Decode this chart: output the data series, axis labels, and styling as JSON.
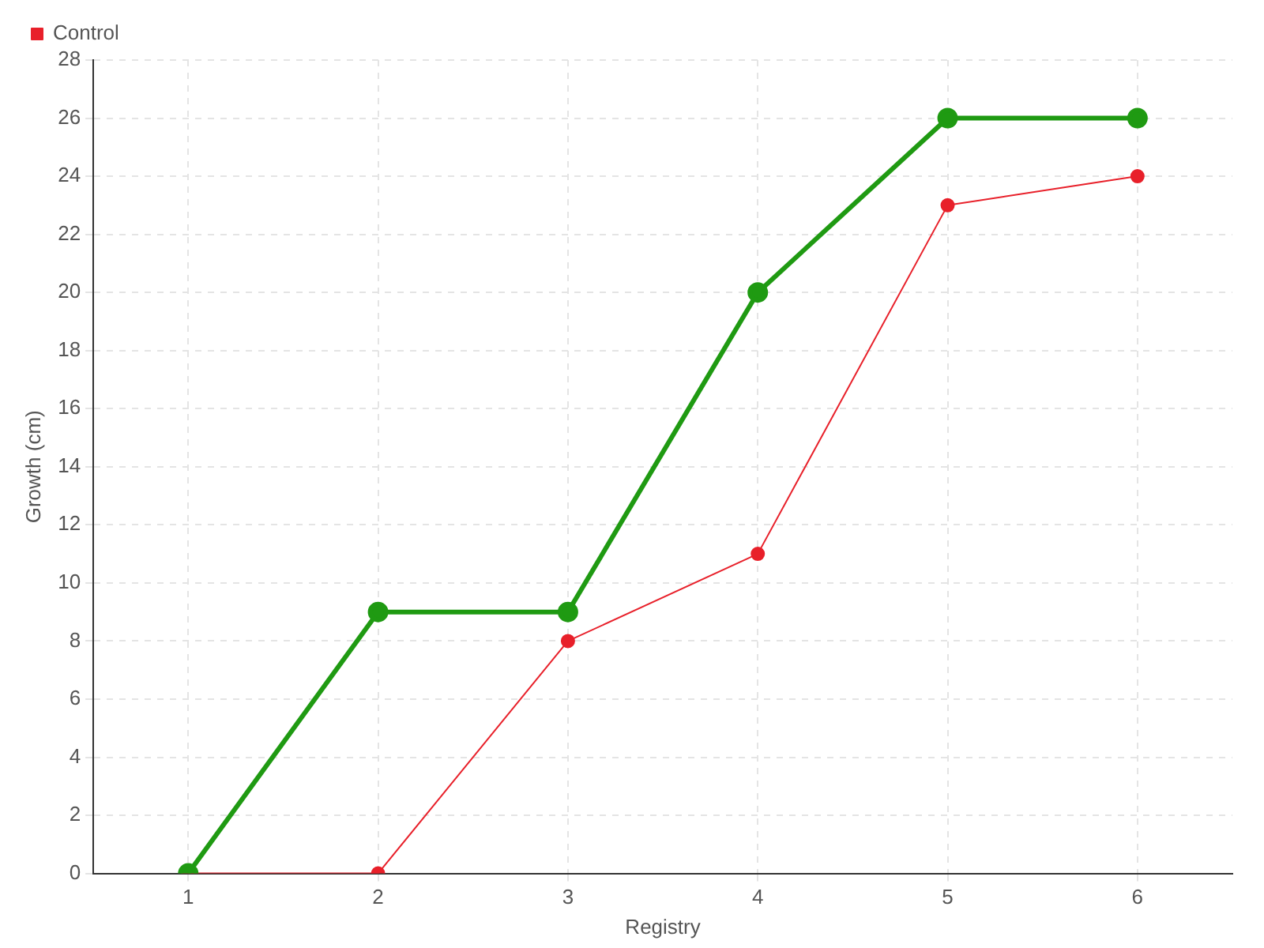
{
  "chart_data": {
    "type": "line",
    "xlabel": "Registry",
    "ylabel": "Growth (cm)",
    "categories": [
      "1",
      "2",
      "3",
      "4",
      "5",
      "6"
    ],
    "series": [
      {
        "color": "#1f9a12",
        "values": [
          0,
          9,
          9,
          20,
          26,
          26
        ]
      },
      {
        "name": "Control",
        "color": "#e8202a",
        "values": [
          0,
          0,
          8,
          11,
          23,
          24
        ]
      }
    ],
    "ylim": [
      0,
      28
    ],
    "yticks": [
      0,
      2,
      4,
      6,
      8,
      10,
      12,
      14,
      16,
      18,
      20,
      22,
      24,
      26,
      28
    ],
    "grid": true,
    "legend": "top left",
    "marker": "circle",
    "line_style": "solid"
  }
}
